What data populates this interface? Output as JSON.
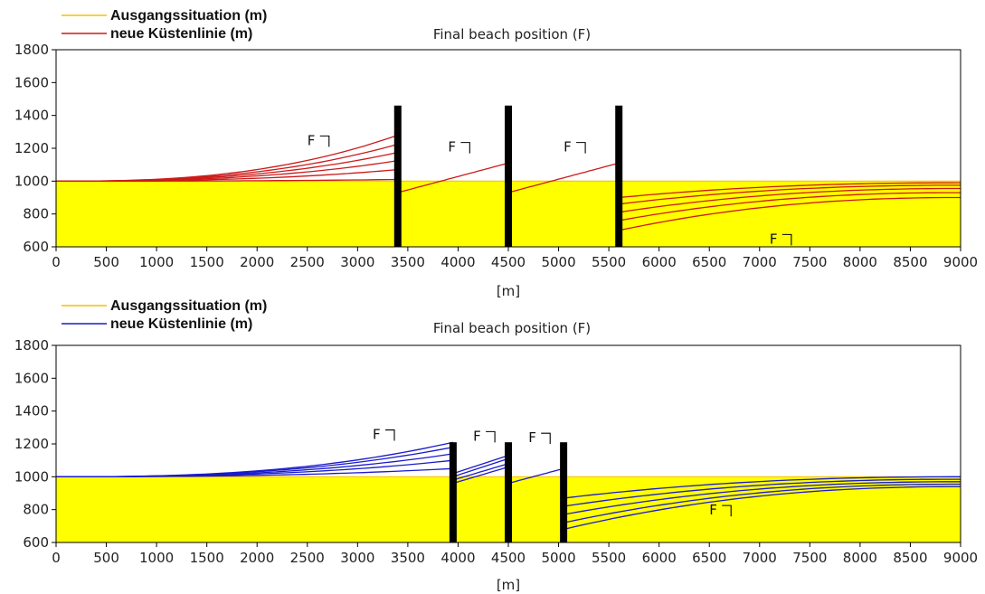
{
  "chart_data": [
    {
      "type": "line",
      "title": "Final beach position (F)",
      "xlabel": "[m]",
      "ylabel": "",
      "xlim": [
        0,
        9000
      ],
      "ylim": [
        600,
        1800
      ],
      "x_ticks": [
        "0",
        "500",
        "1000",
        "1500",
        "2000",
        "2500",
        "3000",
        "3500",
        "4000",
        "4500",
        "5000",
        "5500",
        "6000",
        "6500",
        "7000",
        "7500",
        "8000",
        "8500",
        "9000"
      ],
      "y_ticks": [
        "600",
        "800",
        "1000",
        "1200",
        "1400",
        "1600",
        "1800"
      ],
      "grid": false,
      "legend": {
        "placement": "top-left",
        "entries": [
          {
            "label": "Ausgangssituation (m)",
            "color": "#f2c200"
          },
          {
            "label": "neue Küstenlinie (m)",
            "color": "#cc1a1a"
          }
        ]
      },
      "fill_color": "#ffff00",
      "line_color": "#cc1a1a",
      "initial_shoreline": 1000,
      "groynes": [
        3400,
        4500,
        5600
      ],
      "groyne_top": 1460,
      "segments": [
        {
          "x_start": 0,
          "x_end": 3400,
          "y_start": 1000,
          "y_end_values": [
            1010,
            1070,
            1125,
            1175,
            1225,
            1280
          ],
          "shape": "concave-up"
        },
        {
          "x_start": 3400,
          "x_end": 4500,
          "y_start": 930,
          "y_end_values": [
            1110
          ],
          "shape": "linear"
        },
        {
          "x_start": 4500,
          "x_end": 5600,
          "y_start": 930,
          "y_end_values": [
            1110
          ],
          "shape": "linear"
        },
        {
          "x_start": 5600,
          "x_end": 9000,
          "y_start_values": [
            700,
            760,
            810,
            860,
            900
          ],
          "y_end_values": [
            900,
            930,
            955,
            975,
            990
          ],
          "shape": "s-curve"
        }
      ],
      "annotations": [
        {
          "text": "F",
          "x": 2500,
          "y": 1220
        },
        {
          "text": "F",
          "x": 3900,
          "y": 1180
        },
        {
          "text": "F",
          "x": 5050,
          "y": 1180
        },
        {
          "text": "F",
          "x": 7100,
          "y": 620
        }
      ]
    },
    {
      "type": "line",
      "title": "Final beach position (F)",
      "xlabel": "[m]",
      "ylabel": "",
      "xlim": [
        0,
        9000
      ],
      "ylim": [
        600,
        1800
      ],
      "x_ticks": [
        "0",
        "500",
        "1000",
        "1500",
        "2000",
        "2500",
        "3000",
        "3500",
        "4000",
        "4500",
        "5000",
        "5500",
        "6000",
        "6500",
        "7000",
        "7500",
        "8000",
        "8500",
        "9000"
      ],
      "y_ticks": [
        "600",
        "800",
        "1000",
        "1200",
        "1400",
        "1600",
        "1800"
      ],
      "grid": false,
      "legend": {
        "placement": "top-left",
        "entries": [
          {
            "label": "Ausgangssituation (m)",
            "color": "#f2c200"
          },
          {
            "label": "neue Küstenlinie (m)",
            "color": "#1a1acc"
          }
        ]
      },
      "fill_color": "#ffff00",
      "line_color": "#1a1acc",
      "initial_shoreline": 1000,
      "groynes": [
        3950,
        4500,
        5050
      ],
      "groyne_top": 1210,
      "segments": [
        {
          "x_start": 0,
          "x_end": 3950,
          "y_start": 1000,
          "y_end_values": [
            1050,
            1100,
            1140,
            1180,
            1210
          ],
          "shape": "concave-up"
        },
        {
          "x_start": 3950,
          "x_end": 4500,
          "y_start_values": [
            960,
            980,
            1000,
            1020
          ],
          "y_end_values": [
            1060,
            1080,
            1110,
            1130
          ],
          "shape": "linear"
        },
        {
          "x_start": 4500,
          "x_end": 5050,
          "y_start": 960,
          "y_end_values": [
            1050
          ],
          "shape": "linear"
        },
        {
          "x_start": 5050,
          "x_end": 9000,
          "y_start_values": [
            680,
            720,
            770,
            820,
            870
          ],
          "y_end_values": [
            940,
            955,
            970,
            985,
            1000
          ],
          "shape": "s-curve"
        }
      ],
      "annotations": [
        {
          "text": "F",
          "x": 3150,
          "y": 1230
        },
        {
          "text": "F",
          "x": 4150,
          "y": 1220
        },
        {
          "text": "F",
          "x": 4700,
          "y": 1210
        },
        {
          "text": "F",
          "x": 6500,
          "y": 770
        }
      ]
    }
  ]
}
